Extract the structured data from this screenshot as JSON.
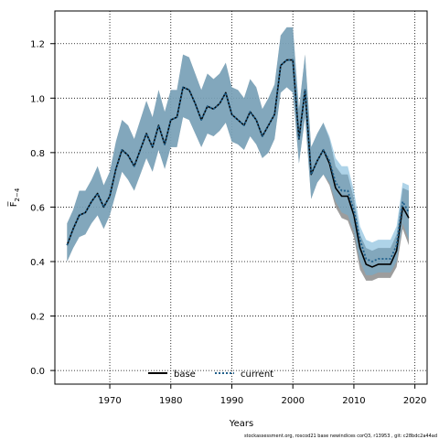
{
  "chart_data": {
    "type": "line",
    "xlabel": "Years",
    "ylabel": "F̅",
    "ylabel_sub": "2−4",
    "xlim": [
      1961,
      2022
    ],
    "ylim": [
      -0.05,
      1.32
    ],
    "xticks": [
      1970,
      1980,
      1990,
      2000,
      2010,
      2020
    ],
    "yticks": [
      0.0,
      0.2,
      0.4,
      0.6,
      0.8,
      1.0,
      1.2
    ],
    "ytick_labels": [
      "0.0",
      "0.2",
      "0.4",
      "0.6",
      "0.8",
      "1.0",
      "1.2"
    ],
    "xtick_labels": [
      "1970",
      "1980",
      "1990",
      "2000",
      "2010",
      "2020"
    ],
    "grid": true,
    "legend_position": "bottom-center",
    "series": [
      {
        "name": "base",
        "color": "#000000",
        "style": "solid",
        "band_color": "#808080",
        "x": [
          1963,
          1964,
          1965,
          1966,
          1967,
          1968,
          1969,
          1970,
          1971,
          1972,
          1973,
          1974,
          1975,
          1976,
          1977,
          1978,
          1979,
          1980,
          1981,
          1982,
          1983,
          1984,
          1985,
          1986,
          1987,
          1988,
          1989,
          1990,
          1991,
          1992,
          1993,
          1994,
          1995,
          1996,
          1997,
          1998,
          1999,
          2000,
          2001,
          2002,
          2003,
          2004,
          2005,
          2006,
          2007,
          2008,
          2009,
          2010,
          2011,
          2012,
          2013,
          2014,
          2015,
          2016,
          2017,
          2018,
          2019
        ],
        "values": [
          0.46,
          0.52,
          0.57,
          0.58,
          0.62,
          0.65,
          0.6,
          0.64,
          0.74,
          0.81,
          0.79,
          0.75,
          0.81,
          0.87,
          0.82,
          0.9,
          0.83,
          0.92,
          0.93,
          1.04,
          1.03,
          0.98,
          0.92,
          0.97,
          0.96,
          0.98,
          1.02,
          0.94,
          0.92,
          0.9,
          0.95,
          0.92,
          0.86,
          0.9,
          0.94,
          1.12,
          1.14,
          1.14,
          0.85,
          1.03,
          0.72,
          0.77,
          0.81,
          0.76,
          0.67,
          0.64,
          0.64,
          0.57,
          0.45,
          0.39,
          0.38,
          0.39,
          0.39,
          0.39,
          0.44,
          0.6,
          0.56
        ],
        "lower": [
          0.4,
          0.45,
          0.49,
          0.5,
          0.54,
          0.57,
          0.52,
          0.57,
          0.65,
          0.73,
          0.7,
          0.66,
          0.72,
          0.78,
          0.73,
          0.81,
          0.74,
          0.82,
          0.82,
          0.93,
          0.92,
          0.87,
          0.82,
          0.87,
          0.86,
          0.88,
          0.91,
          0.84,
          0.83,
          0.81,
          0.86,
          0.83,
          0.78,
          0.8,
          0.85,
          1.02,
          1.04,
          1.02,
          0.76,
          0.93,
          0.63,
          0.69,
          0.72,
          0.68,
          0.6,
          0.56,
          0.55,
          0.49,
          0.37,
          0.33,
          0.33,
          0.34,
          0.34,
          0.34,
          0.38,
          0.52,
          0.46
        ],
        "upper": [
          0.54,
          0.59,
          0.66,
          0.66,
          0.7,
          0.75,
          0.68,
          0.73,
          0.84,
          0.92,
          0.9,
          0.85,
          0.92,
          0.99,
          0.93,
          1.03,
          0.95,
          1.03,
          1.03,
          1.16,
          1.15,
          1.09,
          1.03,
          1.09,
          1.07,
          1.09,
          1.13,
          1.04,
          1.03,
          1.0,
          1.07,
          1.04,
          0.96,
          1.0,
          1.05,
          1.23,
          1.26,
          1.26,
          0.96,
          1.16,
          0.82,
          0.87,
          0.91,
          0.85,
          0.75,
          0.72,
          0.72,
          0.63,
          0.5,
          0.45,
          0.44,
          0.45,
          0.45,
          0.45,
          0.5,
          0.67,
          0.66
        ]
      },
      {
        "name": "current",
        "color": "#1f5f8b",
        "style": "dotted",
        "band_color": "#6baed6",
        "x": [
          1963,
          1964,
          1965,
          1966,
          1967,
          1968,
          1969,
          1970,
          1971,
          1972,
          1973,
          1974,
          1975,
          1976,
          1977,
          1978,
          1979,
          1980,
          1981,
          1982,
          1983,
          1984,
          1985,
          1986,
          1987,
          1988,
          1989,
          1990,
          1991,
          1992,
          1993,
          1994,
          1995,
          1996,
          1997,
          1998,
          1999,
          2000,
          2001,
          2002,
          2003,
          2004,
          2005,
          2006,
          2007,
          2008,
          2009,
          2010,
          2011,
          2012,
          2013,
          2014,
          2015,
          2016,
          2017,
          2018,
          2019
        ],
        "values": [
          0.46,
          0.52,
          0.57,
          0.58,
          0.62,
          0.65,
          0.6,
          0.64,
          0.74,
          0.81,
          0.79,
          0.75,
          0.81,
          0.87,
          0.82,
          0.9,
          0.83,
          0.92,
          0.93,
          1.04,
          1.03,
          0.98,
          0.92,
          0.97,
          0.96,
          0.98,
          1.02,
          0.94,
          0.92,
          0.9,
          0.95,
          0.92,
          0.86,
          0.9,
          0.94,
          1.12,
          1.14,
          1.14,
          0.85,
          1.03,
          0.72,
          0.77,
          0.81,
          0.77,
          0.69,
          0.66,
          0.66,
          0.59,
          0.48,
          0.41,
          0.4,
          0.41,
          0.41,
          0.41,
          0.46,
          0.62,
          0.58
        ],
        "lower": [
          0.4,
          0.45,
          0.49,
          0.5,
          0.54,
          0.57,
          0.52,
          0.57,
          0.65,
          0.73,
          0.7,
          0.66,
          0.72,
          0.78,
          0.73,
          0.81,
          0.74,
          0.82,
          0.82,
          0.93,
          0.92,
          0.87,
          0.82,
          0.87,
          0.86,
          0.88,
          0.91,
          0.84,
          0.83,
          0.81,
          0.86,
          0.83,
          0.78,
          0.8,
          0.85,
          1.02,
          1.04,
          1.02,
          0.76,
          0.93,
          0.63,
          0.69,
          0.72,
          0.69,
          0.62,
          0.58,
          0.57,
          0.51,
          0.4,
          0.35,
          0.35,
          0.36,
          0.36,
          0.36,
          0.4,
          0.54,
          0.48
        ],
        "upper": [
          0.54,
          0.59,
          0.66,
          0.66,
          0.7,
          0.75,
          0.68,
          0.73,
          0.84,
          0.92,
          0.9,
          0.85,
          0.92,
          0.99,
          0.93,
          1.03,
          0.95,
          1.03,
          1.03,
          1.16,
          1.15,
          1.09,
          1.03,
          1.09,
          1.07,
          1.09,
          1.13,
          1.04,
          1.03,
          1.0,
          1.07,
          1.04,
          0.96,
          1.0,
          1.05,
          1.23,
          1.26,
          1.26,
          0.96,
          1.16,
          0.82,
          0.87,
          0.91,
          0.86,
          0.78,
          0.75,
          0.75,
          0.66,
          0.53,
          0.48,
          0.47,
          0.48,
          0.48,
          0.48,
          0.53,
          0.69,
          0.68
        ]
      }
    ]
  },
  "footnote": "stockassessment.org, roscod21 base newindices corQ3, r13953 , git: c28bdc2a44ad"
}
